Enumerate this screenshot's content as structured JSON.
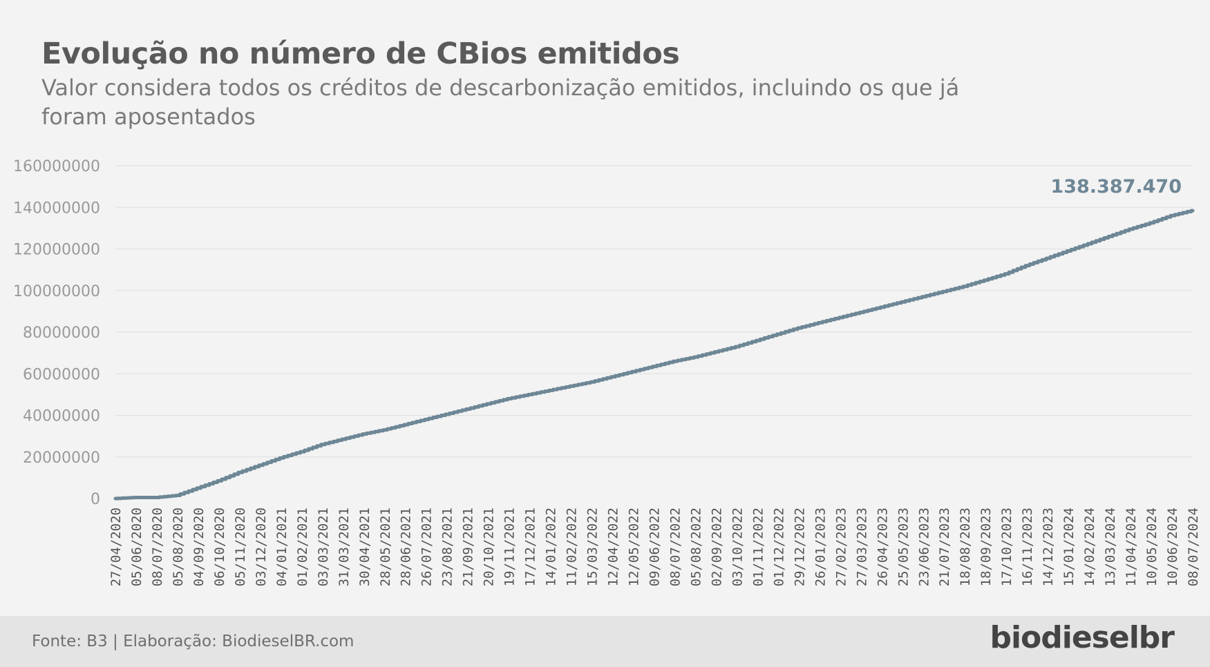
{
  "title": "Evolução no número de CBios emitidos",
  "subtitle": "Valor considera todos os créditos de descarbonização emitidos, incluindo os que já foram aposentados",
  "footer": {
    "source": "Fonte: B3 | Elaboração: BiodieselBR.com",
    "brand": "biodieselbr"
  },
  "colors": {
    "line": "#6e8796",
    "last_label": "#6e8796",
    "grid": "#dedede",
    "tick": "#9a9a9a",
    "date_tick": "#555555"
  },
  "chart_data": {
    "type": "line",
    "title": "Evolução no número de CBios emitidos",
    "xlabel": "",
    "ylabel": "",
    "ylim": [
      0,
      160000000
    ],
    "yticks": [
      "0",
      "20000000",
      "40000000",
      "60000000",
      "80000000",
      "100000000",
      "120000000",
      "140000000",
      "160000000"
    ],
    "grid": "horizontal",
    "legend": "none",
    "last_value_label": "138.387.470",
    "x_tick_labels": [
      "27/04/2020",
      "05/06/2020",
      "08/07/2020",
      "05/08/2020",
      "04/09/2020",
      "06/10/2020",
      "05/11/2020",
      "03/12/2020",
      "04/01/2021",
      "01/02/2021",
      "03/03/2021",
      "31/03/2021",
      "30/04/2021",
      "28/05/2021",
      "28/06/2021",
      "26/07/2021",
      "23/08/2021",
      "21/09/2021",
      "20/10/2021",
      "19/11/2021",
      "17/12/2021",
      "14/01/2022",
      "11/02/2022",
      "15/03/2022",
      "12/04/2022",
      "12/05/2022",
      "09/06/2022",
      "08/07/2022",
      "05/08/2022",
      "02/09/2022",
      "03/10/2022",
      "01/11/2022",
      "01/12/2022",
      "29/12/2022",
      "26/01/2023",
      "27/02/2023",
      "27/03/2023",
      "26/04/2023",
      "25/05/2023",
      "23/06/2023",
      "21/07/2023",
      "18/08/2023",
      "18/09/2023",
      "17/10/2023",
      "16/11/2023",
      "14/12/2023",
      "15/01/2024",
      "14/02/2024",
      "13/03/2024",
      "11/04/2024",
      "10/05/2024",
      "10/06/2024",
      "08/07/2024"
    ],
    "series": [
      {
        "values": [
          0,
          500000,
          500000,
          1500000,
          5000000,
          8500000,
          12500000,
          16000000,
          19500000,
          22500000,
          26000000,
          28500000,
          31000000,
          33000000,
          35500000,
          38000000,
          40500000,
          43000000,
          45500000,
          48000000,
          50000000,
          52000000,
          54000000,
          56000000,
          58500000,
          61000000,
          63500000,
          66000000,
          68000000,
          70500000,
          73000000,
          76000000,
          79000000,
          82000000,
          84500000,
          87000000,
          89500000,
          92000000,
          94500000,
          97000000,
          99500000,
          102000000,
          105000000,
          108000000,
          112000000,
          115500000,
          119000000,
          122500000,
          126000000,
          129500000,
          132500000,
          136000000,
          138387470
        ]
      }
    ]
  }
}
